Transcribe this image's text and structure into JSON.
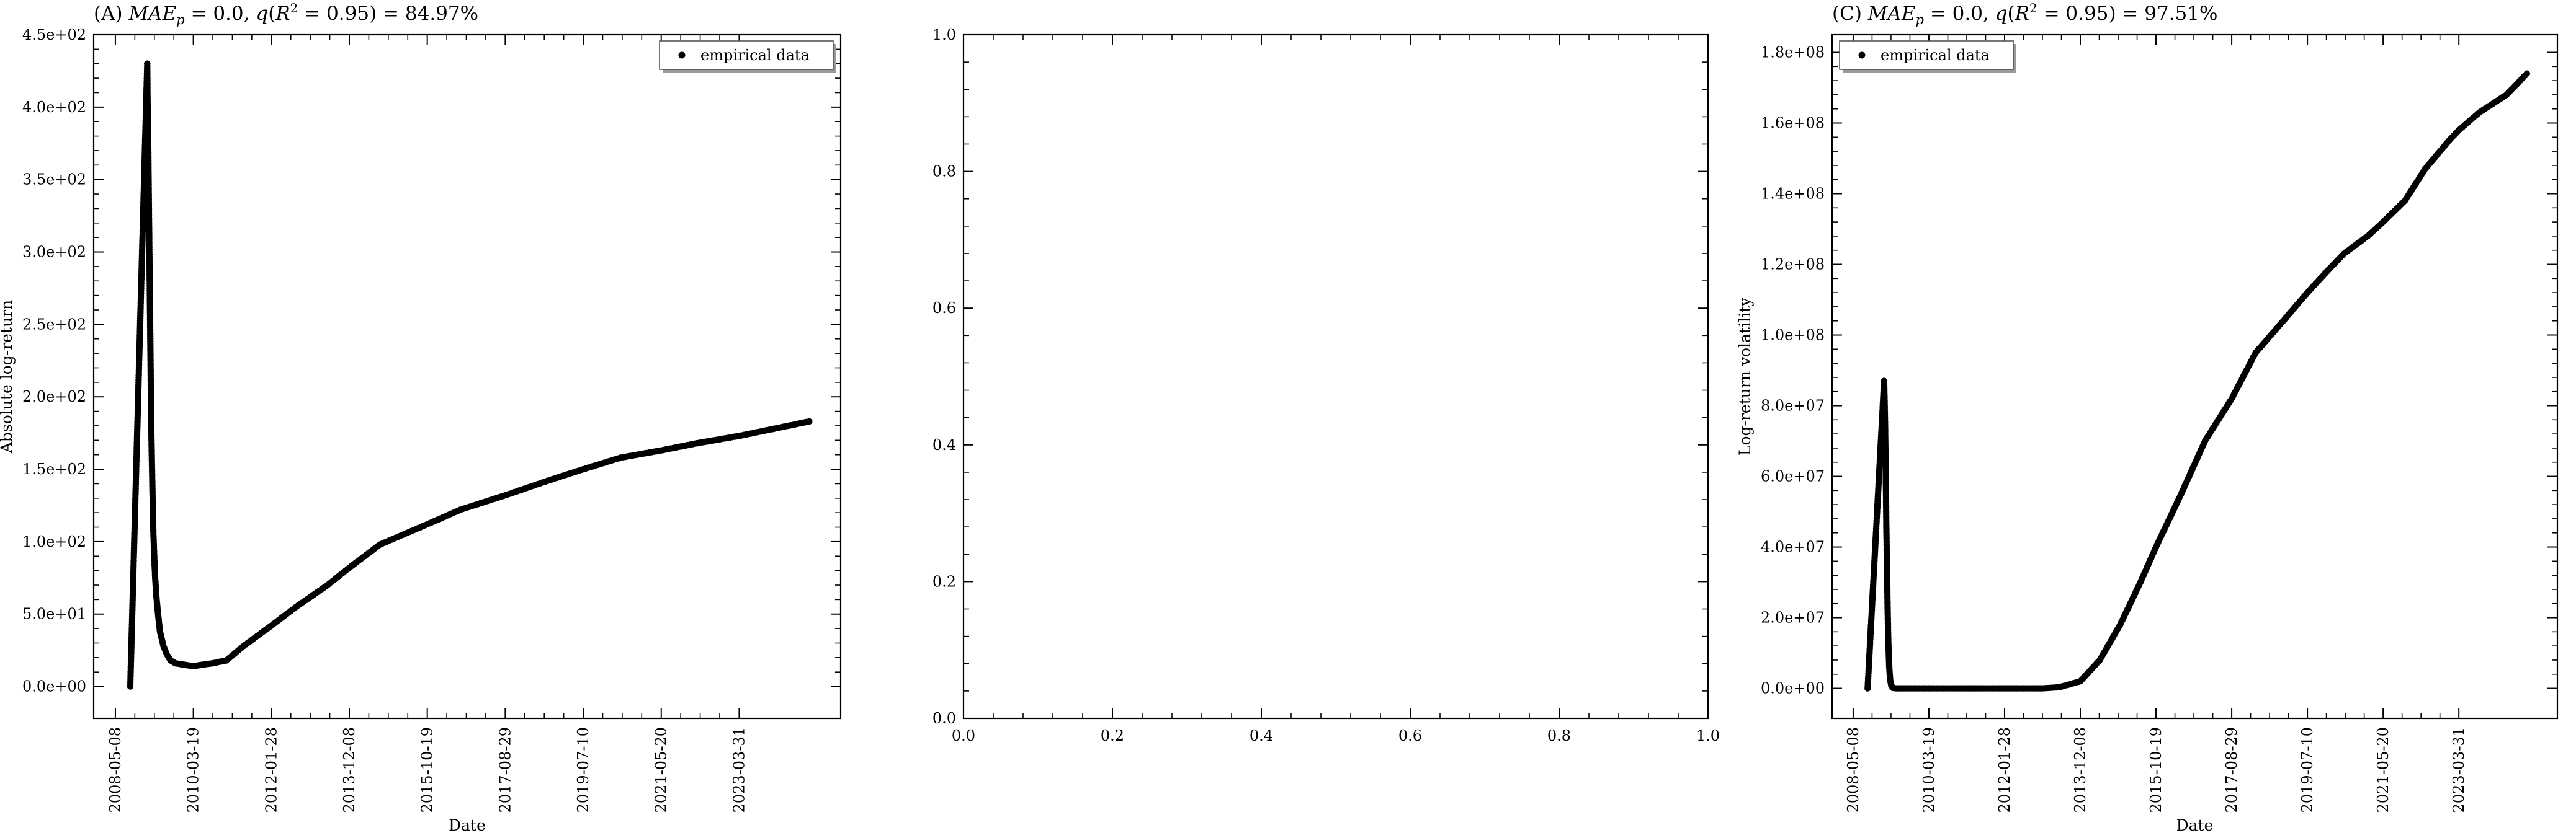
{
  "chart_data": [
    {
      "type": "scatter",
      "panel": "A",
      "title": "(A) MAE_p = 0.0, q(R² = 0.95) = 84.97%",
      "title_parts": {
        "prefix": "(A) ",
        "mae": "MAE",
        "mae_sub": "p",
        "mae_val": " = 0.0, ",
        "q": "q",
        "q_open": "(",
        "r": "R",
        "r_sup": "2",
        "q_rest": " = 0.95) = 84.97%"
      },
      "xlabel": "Date",
      "ylabel": "Absolute log-return",
      "xlim": [
        "2007-11-01",
        "2025-09-01"
      ],
      "ylim": [
        -22,
        450
      ],
      "x_ticks": [
        "2008-05-08",
        "2010-03-19",
        "2012-01-28",
        "2013-12-08",
        "2015-10-19",
        "2017-08-29",
        "2019-07-10",
        "2021-05-20",
        "2023-03-31"
      ],
      "y_ticks": [
        0,
        50,
        100,
        150,
        200,
        250,
        300,
        350,
        400,
        450
      ],
      "y_tick_labels": [
        "0.0e+00",
        "5.0e+01",
        "1.0e+02",
        "1.5e+02",
        "2.0e+02",
        "2.5e+02",
        "3.0e+02",
        "3.5e+02",
        "4.0e+02",
        "4.5e+02"
      ],
      "legend": {
        "label": "empirical data",
        "position": "top-right"
      },
      "series": [
        {
          "name": "empirical data",
          "color": "#000000",
          "x": [
            "2008-09-15",
            "2009-02-10",
            "2009-02-12",
            "2009-02-14",
            "2009-02-18",
            "2009-02-22",
            "2009-02-26",
            "2009-03-02",
            "2009-03-06",
            "2009-03-10",
            "2009-03-14",
            "2009-03-18",
            "2009-03-24",
            "2009-03-30",
            "2009-04-05",
            "2009-04-12",
            "2009-04-20",
            "2009-05-01",
            "2009-05-15",
            "2009-06-01",
            "2009-07-01",
            "2009-08-01",
            "2009-09-01",
            "2009-10-15",
            "2010-01-01",
            "2010-03-19",
            "2010-06-01",
            "2010-09-01",
            "2011-01-01",
            "2011-06-01",
            "2012-01-28",
            "2012-09-01",
            "2013-06-01",
            "2013-12-08",
            "2014-09-01",
            "2015-10-19",
            "2016-08-01",
            "2017-08-29",
            "2018-09-01",
            "2019-07-10",
            "2020-06-01",
            "2021-05-20",
            "2022-04-01",
            "2023-03-31",
            "2024-02-01",
            "2024-12-01"
          ],
          "y": [
            0,
            430,
            410,
            400,
            380,
            350,
            320,
            290,
            260,
            230,
            200,
            175,
            150,
            125,
            105,
            90,
            75,
            62,
            50,
            38,
            28,
            22,
            18,
            16,
            15,
            14,
            15,
            16,
            18,
            28,
            42,
            55,
            70,
            82,
            98,
            112,
            122,
            132,
            142,
            150,
            158,
            163,
            168,
            173,
            178,
            183
          ]
        }
      ]
    },
    {
      "type": "scatter",
      "panel": "B",
      "title": "",
      "xlabel": "",
      "ylabel": "",
      "xlim": [
        0,
        1
      ],
      "ylim": [
        0,
        1
      ],
      "x_ticks": [
        0,
        0.2,
        0.4,
        0.6,
        0.8,
        1.0
      ],
      "x_tick_labels": [
        "0.0",
        "0.2",
        "0.4",
        "0.6",
        "0.8",
        "1.0"
      ],
      "y_ticks": [
        0,
        0.2,
        0.4,
        0.6,
        0.8,
        1.0
      ],
      "y_tick_labels": [
        "0.0",
        "0.2",
        "0.4",
        "0.6",
        "0.8",
        "1.0"
      ],
      "series": []
    },
    {
      "type": "scatter",
      "panel": "C",
      "title": "(C) MAE_p = 0.0, q(R² = 0.95) = 97.51%",
      "title_parts": {
        "prefix": "(C) ",
        "mae": "MAE",
        "mae_sub": "p",
        "mae_val": " = 0.0, ",
        "q": "q",
        "q_open": "(",
        "r": "R",
        "r_sup": "2",
        "q_rest": " = 0.95) = 97.51%"
      },
      "xlabel": "Date",
      "ylabel": "Log-return volatility",
      "xlim": [
        "2007-11-01",
        "2025-09-01"
      ],
      "ylim": [
        -8500000,
        185000000
      ],
      "x_ticks": [
        "2008-05-08",
        "2010-03-19",
        "2012-01-28",
        "2013-12-08",
        "2015-10-19",
        "2017-08-29",
        "2019-07-10",
        "2021-05-20",
        "2023-03-31"
      ],
      "y_ticks": [
        0,
        20000000,
        40000000,
        60000000,
        80000000,
        100000000,
        120000000,
        140000000,
        160000000,
        180000000
      ],
      "y_tick_labels": [
        "0.0e+00",
        "2.0e+07",
        "4.0e+07",
        "6.0e+07",
        "8.0e+07",
        "1.0e+08",
        "1.2e+08",
        "1.4e+08",
        "1.6e+08",
        "1.8e+08"
      ],
      "legend": {
        "label": "empirical data",
        "position": "top-left"
      },
      "series": [
        {
          "name": "empirical data",
          "color": "#000000",
          "x": [
            "2008-09-15",
            "2009-02-10",
            "2009-02-14",
            "2009-02-18",
            "2009-02-22",
            "2009-02-26",
            "2009-03-02",
            "2009-03-08",
            "2009-03-14",
            "2009-03-20",
            "2009-03-28",
            "2009-04-05",
            "2009-04-15",
            "2009-05-01",
            "2009-06-01",
            "2009-09-01",
            "2010-03-19",
            "2011-01-01",
            "2012-01-28",
            "2013-01-01",
            "2013-06-01",
            "2013-12-08",
            "2014-06-01",
            "2014-12-01",
            "2015-06-01",
            "2015-10-19",
            "2016-06-01",
            "2017-01-01",
            "2017-08-29",
            "2018-04-01",
            "2019-01-01",
            "2019-07-10",
            "2020-01-01",
            "2020-06-01",
            "2021-01-01",
            "2021-05-20",
            "2021-12-01",
            "2022-06-01",
            "2023-01-01",
            "2023-03-31",
            "2023-10-01",
            "2024-06-01",
            "2024-12-01"
          ],
          "y": [
            0,
            87000000,
            82000000,
            76000000,
            68000000,
            58000000,
            46000000,
            34000000,
            22000000,
            13000000,
            6000000,
            2500000,
            800000,
            100000,
            0,
            0,
            0,
            0,
            0,
            0,
            300000,
            2000000,
            8000000,
            18000000,
            30000000,
            40000000,
            55000000,
            70000000,
            82000000,
            95000000,
            105000000,
            112000000,
            118000000,
            123000000,
            128000000,
            132000000,
            138000000,
            147000000,
            155000000,
            158000000,
            163000000,
            168000000,
            174000000
          ]
        }
      ]
    }
  ]
}
